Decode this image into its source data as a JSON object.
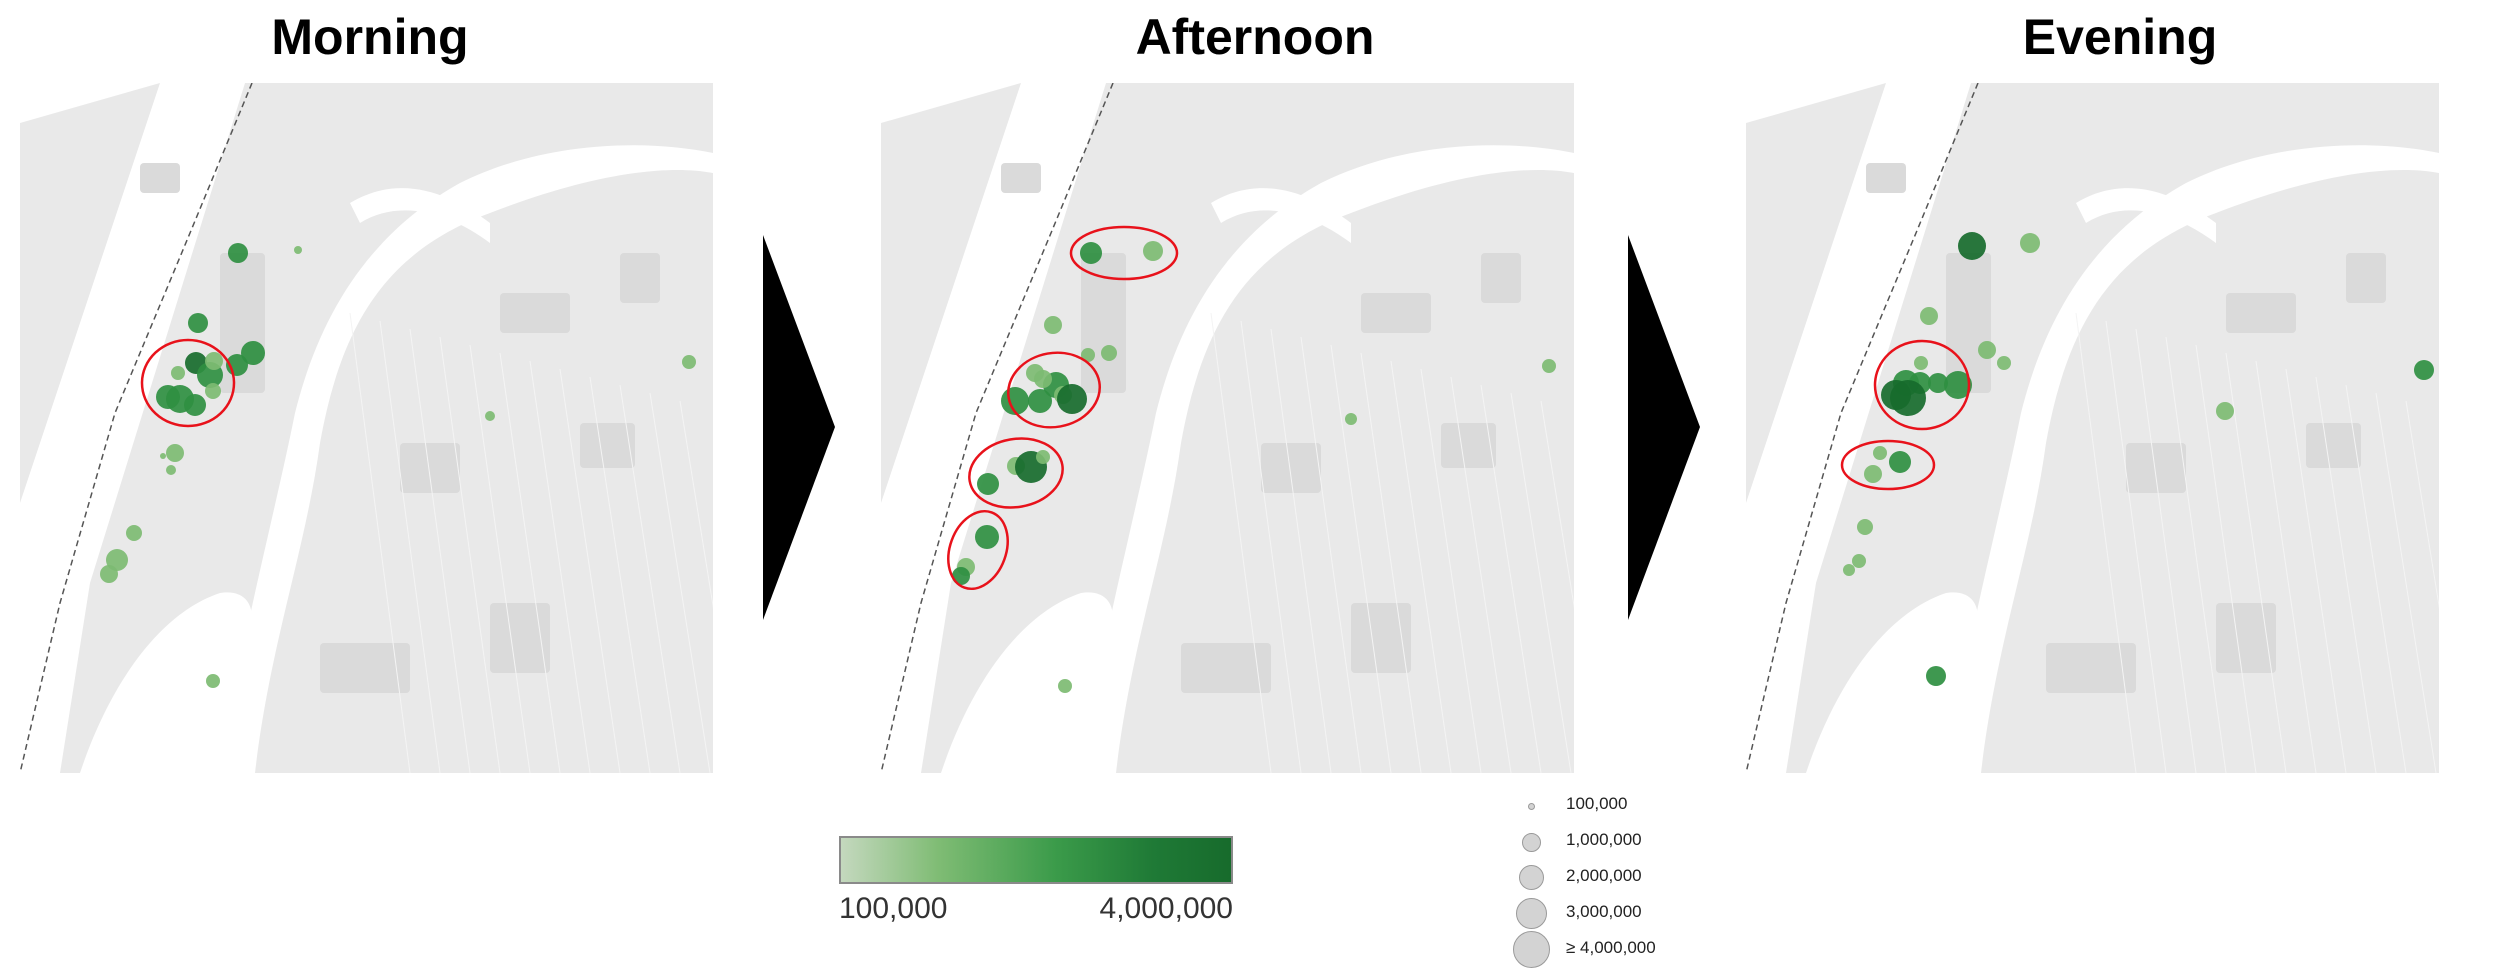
{
  "panels": [
    {
      "title": "Morning"
    },
    {
      "title": "Afternoon"
    },
    {
      "title": "Evening"
    }
  ],
  "colors": {
    "water": "#ffffff",
    "land": "#e9e9e9",
    "park": "#dadada",
    "circle_dark": "#176b2c",
    "circle_mid": "#2f8f41",
    "circle_light": "#7dbb72",
    "highlight_ring": "#e8121b"
  },
  "color_legend": {
    "min_label": "100,000",
    "max_label": "4,000,000"
  },
  "size_legend": [
    {
      "label": "100,000"
    },
    {
      "label": "1,000,000"
    },
    {
      "label": "2,000,000"
    },
    {
      "label": "3,000,000"
    },
    {
      "label": "≥ 4,000,000"
    }
  ]
}
